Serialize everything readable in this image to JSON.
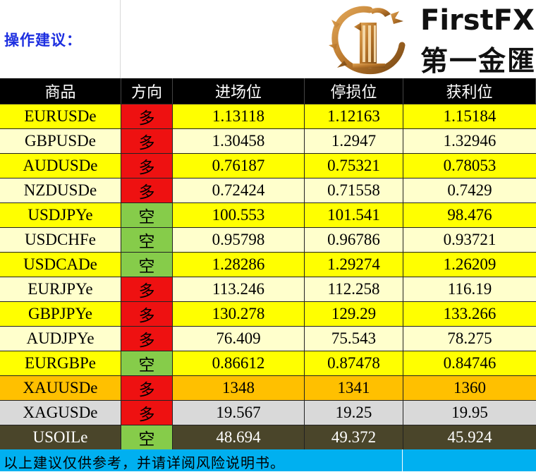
{
  "title": "操作建议：",
  "brand": {
    "name_en": "FirstFX",
    "name_cn": "第一金匯",
    "logo_icon": "dragon-coin-logo",
    "logo_color": "#b8762b"
  },
  "table": {
    "headers": [
      "商品",
      "方向",
      "进场位",
      "停损位",
      "获利位"
    ],
    "direction_colors": {
      "多": "#ee1111",
      "空": "#86cc4a"
    },
    "rows": [
      {
        "symbol": "EURUSDe",
        "dir": "多",
        "entry": "1.13118",
        "stop": "1.12163",
        "target": "1.15184",
        "bg": "#ffff00"
      },
      {
        "symbol": "GBPUSDe",
        "dir": "多",
        "entry": "1.30458",
        "stop": "1.2947",
        "target": "1.32946",
        "bg": "#ffffcc"
      },
      {
        "symbol": "AUDUSDe",
        "dir": "多",
        "entry": "0.76187",
        "stop": "0.75321",
        "target": "0.78053",
        "bg": "#ffff00"
      },
      {
        "symbol": "NZDUSDe",
        "dir": "多",
        "entry": "0.72424",
        "stop": "0.71558",
        "target": "0.7429",
        "bg": "#ffffcc"
      },
      {
        "symbol": "USDJPYe",
        "dir": "空",
        "entry": "100.553",
        "stop": "101.541",
        "target": "98.476",
        "bg": "#ffff00"
      },
      {
        "symbol": "USDCHFe",
        "dir": "空",
        "entry": "0.95798",
        "stop": "0.96786",
        "target": "0.93721",
        "bg": "#ffffcc"
      },
      {
        "symbol": "USDCADe",
        "dir": "空",
        "entry": "1.28286",
        "stop": "1.29274",
        "target": "1.26209",
        "bg": "#ffff00"
      },
      {
        "symbol": "EURJPYe",
        "dir": "多",
        "entry": "113.246",
        "stop": "112.258",
        "target": "116.19",
        "bg": "#ffffcc"
      },
      {
        "symbol": "GBPJPYe",
        "dir": "多",
        "entry": "130.278",
        "stop": "129.29",
        "target": "133.266",
        "bg": "#ffff00"
      },
      {
        "symbol": "AUDJPYe",
        "dir": "多",
        "entry": "76.409",
        "stop": "75.543",
        "target": "78.275",
        "bg": "#ffffcc"
      },
      {
        "symbol": "EURGBPe",
        "dir": "空",
        "entry": "0.86612",
        "stop": "0.87478",
        "target": "0.84746",
        "bg": "#ffff00"
      },
      {
        "symbol": "XAUUSDe",
        "dir": "多",
        "entry": "1348",
        "stop": "1341",
        "target": "1360",
        "bg": "#ffc000"
      },
      {
        "symbol": "XAGUSDe",
        "dir": "多",
        "entry": "19.567",
        "stop": "19.25",
        "target": "19.95",
        "bg": "#d9d9d9"
      },
      {
        "symbol": "USOILe",
        "dir": "空",
        "entry": "48.694",
        "stop": "49.372",
        "target": "45.924",
        "bg": "#4a452a",
        "fg": "#ffffff"
      }
    ]
  },
  "footer": {
    "disclaimer": "以上建议仅供参考，并请详阅风险说明书。",
    "bg": "#00b0f0"
  }
}
